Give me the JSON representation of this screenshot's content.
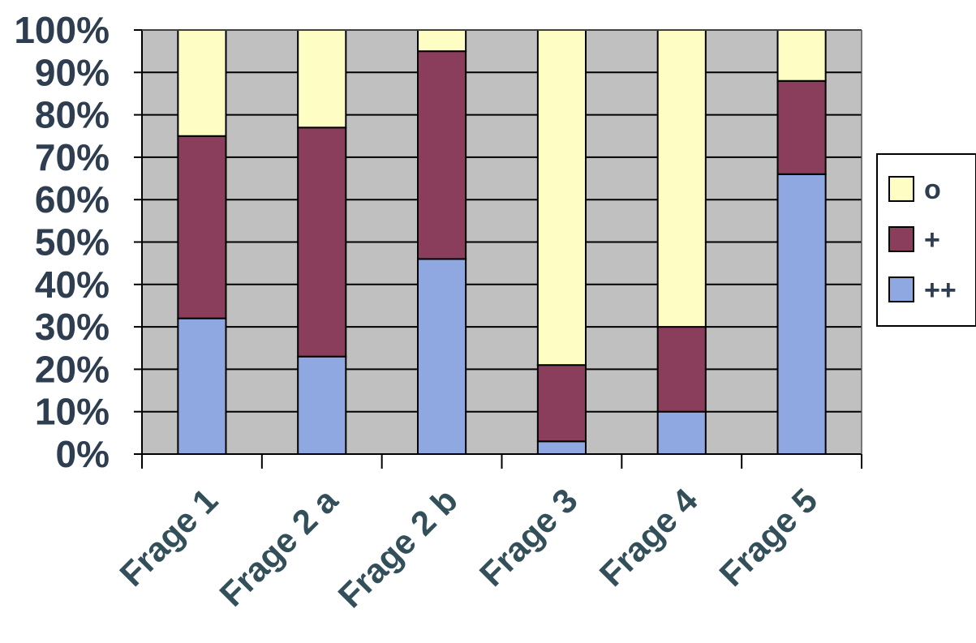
{
  "chart_data": {
    "type": "bar",
    "stacked": true,
    "percent": true,
    "categories": [
      "Frage 1",
      "Frage 2 a",
      "Frage 2 b",
      "Frage 3",
      "Frage 4",
      "Frage 5"
    ],
    "series": [
      {
        "name": "++",
        "values": [
          32,
          23,
          46,
          3,
          10,
          66
        ],
        "color": "#8fa8e2"
      },
      {
        "name": "+",
        "values": [
          43,
          54,
          49,
          18,
          20,
          22
        ],
        "color": "#8a3e5c"
      },
      {
        "name": "o",
        "values": [
          25,
          23,
          5,
          79,
          70,
          12
        ],
        "color": "#fdfdc4"
      }
    ],
    "y_ticks": [
      "0%",
      "10%",
      "20%",
      "30%",
      "40%",
      "50%",
      "60%",
      "70%",
      "80%",
      "90%",
      "100%"
    ],
    "ylim": [
      0,
      100
    ],
    "grid": true,
    "plot_background": "#c0c0c0",
    "legend_position": "right",
    "legend_order": [
      "o",
      "+",
      "++"
    ],
    "title": "",
    "xlabel": "",
    "ylabel": ""
  }
}
